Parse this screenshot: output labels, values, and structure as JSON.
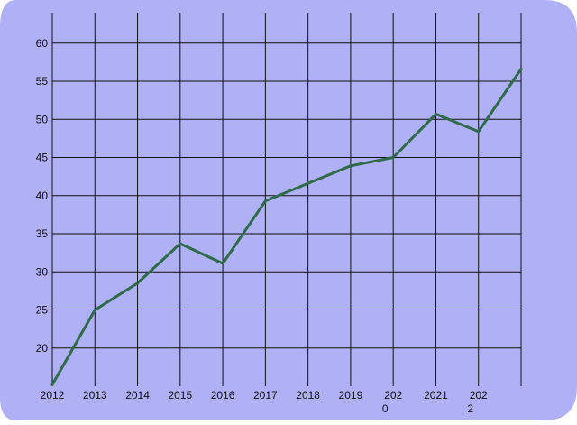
{
  "colors": {
    "background": "#b0b0f4",
    "grid": "#111111",
    "line": "#2e6b48"
  },
  "chart_data": {
    "type": "line",
    "title": "",
    "xlabel": "",
    "ylabel": "",
    "x_tick_labels": [
      "2012",
      "2013",
      "2014",
      "2015",
      "2016",
      "2017",
      "2018",
      "2019",
      "202\n0",
      "2021",
      "202\n2"
    ],
    "y_ticks": [
      20,
      25,
      30,
      35,
      40,
      45,
      50,
      55,
      60
    ],
    "ylim": [
      15,
      64
    ],
    "xlim": [
      2012,
      2023
    ],
    "grid": true,
    "legend": "none",
    "series": [
      {
        "x": [
          2012,
          2013,
          2014,
          2015,
          2016,
          2017,
          2018,
          2019,
          2020,
          2021,
          2022,
          2023
        ],
        "values": [
          15.2,
          25,
          28.5,
          33.7,
          31.1,
          39.3,
          41.6,
          43.9,
          45,
          50.7,
          48.4,
          56.6
        ]
      }
    ]
  }
}
